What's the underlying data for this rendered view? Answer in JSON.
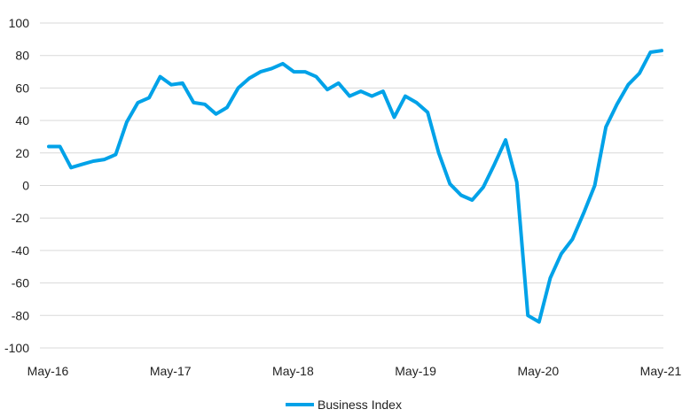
{
  "chart_data": {
    "type": "line",
    "ylim": [
      -100,
      100
    ],
    "y_ticks": [
      "100",
      "80",
      "60",
      "40",
      "20",
      "0",
      "-20",
      "-40",
      "-60",
      "-80",
      "-100"
    ],
    "x_tick_labels": [
      "May-16",
      "May-17",
      "May-18",
      "May-19",
      "May-20",
      "May-21"
    ],
    "grid": "horizontal",
    "legend_position": "bottom",
    "line_color": "#00a2e8",
    "series": [
      {
        "name": "Business Index",
        "x_start": "May-16",
        "x_end": "May-21",
        "values": [
          24,
          24,
          11,
          13,
          15,
          16,
          19,
          39,
          51,
          54,
          67,
          62,
          63,
          51,
          50,
          44,
          48,
          60,
          66,
          70,
          72,
          75,
          70,
          70,
          67,
          59,
          63,
          55,
          58,
          55,
          58,
          42,
          55,
          51,
          45,
          20,
          1,
          -6,
          -9,
          -1,
          13,
          28,
          2,
          -80,
          -84,
          -57,
          -42,
          -33,
          -17,
          0,
          36,
          50,
          62,
          69,
          82,
          83
        ]
      }
    ]
  }
}
